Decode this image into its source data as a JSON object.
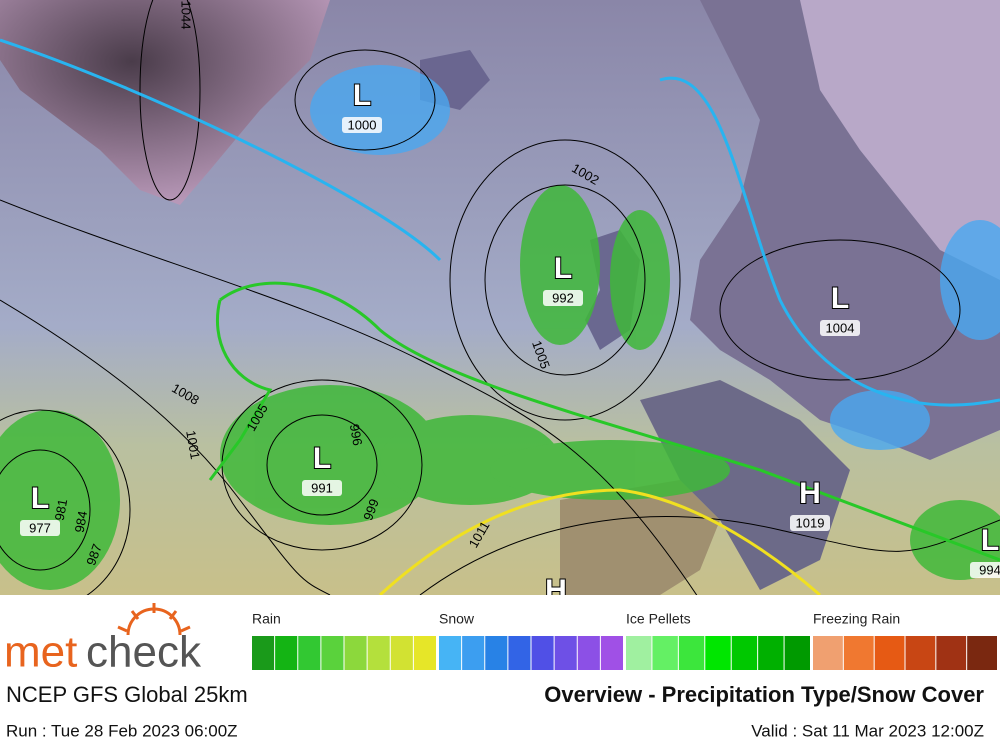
{
  "logo": {
    "prefix": "met",
    "suffix": "check"
  },
  "footer": {
    "model": "NCEP GFS Global 25km",
    "title": "Overview - Precipitation Type/Snow Cover",
    "run": "Run : Tue 28 Feb 2023 06:00Z",
    "valid": "Valid : Sat 11 Mar 2023 12:00Z"
  },
  "legend": [
    {
      "name": "Rain",
      "colors": [
        "#1a9a1a",
        "#14b414",
        "#32c832",
        "#5ad23c",
        "#8cd83c",
        "#b4e03c",
        "#d2e232",
        "#e6e628"
      ]
    },
    {
      "name": "Snow",
      "colors": [
        "#46b4f5",
        "#3c9ef0",
        "#2882e6",
        "#3264e6",
        "#5050e6",
        "#6e50e6",
        "#8c50e6",
        "#a050e6"
      ]
    },
    {
      "name": "Ice Pellets",
      "colors": [
        "#a0f0a0",
        "#64f064",
        "#3ce63c",
        "#00e600",
        "#00c800",
        "#00b000",
        "#009a00"
      ]
    },
    {
      "name": "Freezing Rain",
      "colors": [
        "#f0a070",
        "#f07830",
        "#e65a14",
        "#c84614",
        "#a03214",
        "#7a2810"
      ]
    }
  ],
  "pressure_centers": [
    {
      "symbol": "L",
      "value": "1000"
    },
    {
      "symbol": "L",
      "value": "992"
    },
    {
      "symbol": "L",
      "value": "1004"
    },
    {
      "symbol": "L",
      "value": "991"
    },
    {
      "symbol": "L",
      "value": "977"
    },
    {
      "symbol": "H",
      "value": "1019"
    },
    {
      "symbol": "L",
      "value": "994"
    },
    {
      "symbol": "H"
    }
  ],
  "isobar_labels": [
    "1044",
    "1002",
    "1008",
    "1005",
    "1005",
    "1001",
    "996",
    "999",
    "984",
    "981",
    "1011",
    "987"
  ]
}
